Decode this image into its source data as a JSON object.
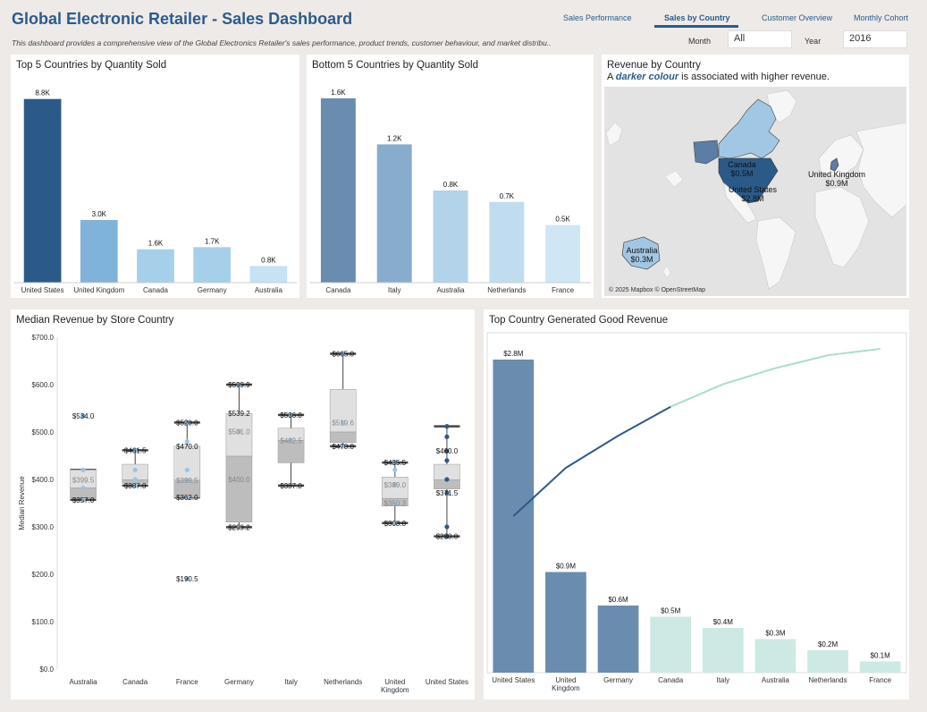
{
  "header": {
    "title": "Global Electronic Retailer - Sales Dashboard",
    "description": "This dashboard provides a comprehensive view of the Global Electronics Retailer's sales performance, product trends, customer behaviour, and market distribu.."
  },
  "tabs": [
    {
      "label": "Sales Performance",
      "active": false
    },
    {
      "label": "Sales by Country",
      "active": true
    },
    {
      "label": "Customer Overview",
      "active": false
    },
    {
      "label": "Monthly Cohort",
      "active": false
    }
  ],
  "filters": {
    "month": {
      "label": "Month",
      "value": "All"
    },
    "year": {
      "label": "Year",
      "value": "2016"
    }
  },
  "colors": {
    "accent": "#2b5b8c",
    "dark_bar": "#2c5a88",
    "mid_bar": "#6a8caf",
    "teal_bar": "#cde9e3"
  },
  "top5": {
    "title": "Top 5 Countries by Quantity Sold"
  },
  "bottom5": {
    "title": "Bottom 5 Countries by Quantity Sold"
  },
  "map": {
    "title": "Revenue by Country",
    "subtitle_pre": "A ",
    "subtitle_em": "darker colour",
    "subtitle_post": " is associated with higher revenue.",
    "credit": "© 2025 Mapbox © OpenStreetMap",
    "labels": [
      {
        "country": "Canada",
        "value": "$0.5M"
      },
      {
        "country": "United States",
        "value": "$2.8M"
      },
      {
        "country": "United Kingdom",
        "value": "$0.9M"
      },
      {
        "country": "Australia",
        "value": "$0.3M"
      }
    ]
  },
  "boxplot": {
    "title": "Median Revenue by Store Country"
  },
  "pareto": {
    "title": "Top Country Generated Good Revenue"
  },
  "chart_data": [
    {
      "type": "bar",
      "title": "Top 5 Countries by Quantity Sold",
      "categories": [
        "United States",
        "United Kingdom",
        "Canada",
        "Germany",
        "Australia"
      ],
      "values": [
        8.8,
        3.0,
        1.6,
        1.7,
        0.8
      ],
      "labels": [
        "8.8K",
        "3.0K",
        "1.6K",
        "1.7K",
        "0.8K"
      ],
      "colors": [
        "#2c5a88",
        "#7fb3d9",
        "#a6d0ea",
        "#a6d0ea",
        "#c6e2f3"
      ],
      "ylim": [
        0,
        9.3
      ]
    },
    {
      "type": "bar",
      "title": "Bottom 5 Countries by Quantity Sold",
      "categories": [
        "Canada",
        "Italy",
        "Australia",
        "Netherlands",
        "France"
      ],
      "values": [
        1.6,
        1.2,
        0.8,
        0.7,
        0.5
      ],
      "labels": [
        "1.6K",
        "1.2K",
        "0.8K",
        "0.7K",
        "0.5K"
      ],
      "colors": [
        "#6a8caf",
        "#88acce",
        "#b2d3ea",
        "#c0ddf0",
        "#cfe6f5"
      ],
      "ylim": [
        0,
        1.7
      ]
    },
    {
      "type": "box",
      "title": "Median Revenue by Store Country",
      "ylabel": "Median Revenue",
      "ylim": [
        0,
        700
      ],
      "yticks": [
        "$0.0",
        "$100.0",
        "$200.0",
        "$300.0",
        "$400.0",
        "$500.0",
        "$600.0",
        "$700.0"
      ],
      "categories": [
        "Australia",
        "Canada",
        "France",
        "Germany",
        "Italy",
        "Netherlands",
        "United Kingdom",
        "United States"
      ],
      "boxes": [
        {
          "whisker_low": 357,
          "q1": 361,
          "median": 382,
          "q3": 420,
          "whisker_high": 420,
          "labels": [
            "$534.0",
            "$399.5",
            "$357.0"
          ],
          "points": [
            534,
            420,
            382,
            357
          ]
        },
        {
          "whisker_low": 387,
          "q1": 392,
          "median": 399,
          "q3": 432,
          "whisker_high": 461.5,
          "labels": [
            "$461.5",
            "$387.0"
          ],
          "points": [
            461.5,
            420,
            400,
            387
          ]
        },
        {
          "whisker_low": 362,
          "q1": 362,
          "median": 398.5,
          "q3": 470,
          "whisker_high": 520,
          "labels": [
            "$520.0",
            "$470.0",
            "$398.5",
            "$362.0",
            "$190.5"
          ],
          "points": [
            520,
            480,
            420,
            398.5,
            362,
            190.5
          ]
        },
        {
          "whisker_low": 299.2,
          "q1": 310,
          "median": 449,
          "q3": 539.2,
          "whisker_high": 599.9,
          "labels": [
            "$599.9",
            "$539.2",
            "$501.0",
            "$400.0",
            "$299.2"
          ],
          "points": [
            599.9,
            501,
            400,
            299.2
          ]
        },
        {
          "whisker_low": 387,
          "q1": 435,
          "median": 482.5,
          "q3": 508,
          "whisker_high": 536,
          "labels": [
            "$536.0",
            "$482.5",
            "$387.0"
          ],
          "points": [
            536,
            482.5
          ]
        },
        {
          "whisker_low": 470,
          "q1": 478,
          "median": 500,
          "q3": 590,
          "whisker_high": 665,
          "labels": [
            "$665.0",
            "$519.6",
            "$470.0"
          ],
          "points": [
            665,
            519.6,
            470
          ]
        },
        {
          "whisker_low": 308,
          "q1": 344,
          "median": 360,
          "q3": 405,
          "whisker_high": 435.5,
          "labels": [
            "$435.5",
            "$389.0",
            "$350.3",
            "$308.0"
          ],
          "points": [
            435.5,
            420,
            389,
            350.3,
            308
          ]
        },
        {
          "whisker_low": 280,
          "q1": 380,
          "median": 399,
          "q3": 432,
          "whisker_high": 512,
          "labels": [
            "$460.0",
            "$371.5",
            "$280.0"
          ],
          "points": [
            512,
            490,
            460,
            440,
            400,
            371.5,
            300,
            280
          ]
        }
      ]
    },
    {
      "type": "bar",
      "title": "Top Country Generated Good Revenue",
      "categories": [
        "United States",
        "United Kingdom",
        "Germany",
        "Canada",
        "Italy",
        "Australia",
        "Netherlands",
        "France"
      ],
      "values": [
        2.8,
        0.9,
        0.6,
        0.5,
        0.4,
        0.3,
        0.2,
        0.1
      ],
      "labels": [
        "$2.8M",
        "$0.9M",
        "$0.6M",
        "$0.5M",
        "$0.4M",
        "$0.3M",
        "$0.2M",
        "$0.1M"
      ],
      "colors": [
        "#6a8caf",
        "#6a8caf",
        "#6a8caf",
        "#cde9e3",
        "#cde9e3",
        "#cde9e3",
        "#cde9e3",
        "#cde9e3"
      ],
      "cumulative_share": [
        0.48,
        0.63,
        0.73,
        0.82,
        0.89,
        0.94,
        0.98,
        1.0
      ],
      "ylim": [
        0,
        3.1
      ]
    }
  ]
}
